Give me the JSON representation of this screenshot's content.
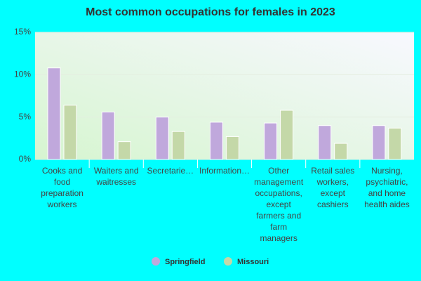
{
  "chart_data": {
    "type": "bar",
    "title": "Most common occupations for females in 2023",
    "categories": [
      "Cooks and food preparation workers",
      "Waiters and waitresses",
      "Secretarie…",
      "Information…",
      "Other management occupations, except farmers and farm managers",
      "Retail sales workers, except cashiers",
      "Nursing, psychiatric, and home health aides"
    ],
    "series": [
      {
        "name": "Springfield",
        "color": "#c0a8dc",
        "values": [
          10.8,
          5.6,
          5.0,
          4.4,
          4.3,
          4.0,
          4.0
        ]
      },
      {
        "name": "Missouri",
        "color": "#c4d8a8",
        "values": [
          6.4,
          2.1,
          3.3,
          2.7,
          5.8,
          1.9,
          3.7
        ]
      }
    ],
    "ylim": [
      0,
      15
    ],
    "yticks": [
      {
        "value": 0,
        "label": "0%"
      },
      {
        "value": 5,
        "label": "5%"
      },
      {
        "value": 10,
        "label": "10%"
      },
      {
        "value": 15,
        "label": "15%"
      }
    ],
    "grid": true
  }
}
